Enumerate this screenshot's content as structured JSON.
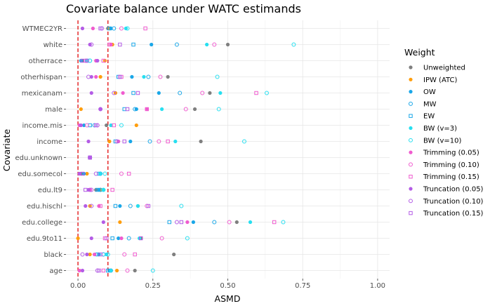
{
  "chart_data": {
    "type": "scatter",
    "title": "Covariate balance under WATC estimands",
    "xlabel": "ASMD",
    "ylabel": "Covariate",
    "xlim": [
      -0.04,
      1.04
    ],
    "xticks": [
      0.0,
      0.25,
      0.5,
      0.75,
      1.0
    ],
    "xtick_labels": [
      "0.00",
      "0.25",
      "0.50",
      "0.75",
      "1.00"
    ],
    "reference_lines": [
      0.0,
      0.1
    ],
    "reference_line_color": "#e41a1c",
    "grid": true,
    "legend_position": "right",
    "legend_title": "Weight",
    "categories": [
      "WTMEC2YR",
      "white",
      "otherrace",
      "otherhispan",
      "mexicanam",
      "male",
      "income.mis",
      "income",
      "edu.unknown",
      "edu.somecol",
      "edu.lt9",
      "edu.hischl",
      "edu.college",
      "edu.9to11",
      "black",
      "age"
    ],
    "series": [
      {
        "name": "Unweighted",
        "color": "#7f7f7f",
        "shape": "circle-filled",
        "values": [
          0.1,
          0.5,
          0.015,
          0.3,
          0.44,
          0.39,
          0.095,
          0.41,
          0.04,
          0.01,
          0.06,
          0.2,
          0.53,
          0.21,
          0.32,
          0.19
        ]
      },
      {
        "name": "IPW (ATC)",
        "color": "#ff9e0d",
        "shape": "circle-filled",
        "values": [
          0.105,
          0.115,
          0.09,
          0.075,
          0.125,
          0.01,
          0.195,
          0.105,
          0.04,
          0.03,
          0.075,
          0.04,
          0.14,
          0.0,
          0.04,
          0.13
        ]
      },
      {
        "name": "OW",
        "color": "#1aa7e8",
        "shape": "circle-filled",
        "values": [
          0.11,
          0.245,
          0.01,
          0.18,
          0.27,
          0.195,
          0.02,
          0.175,
          0.04,
          0.02,
          0.07,
          0.14,
          0.385,
          0.135,
          0.07,
          0.105
        ]
      },
      {
        "name": "MW",
        "color": "#1aa7e8",
        "shape": "circle-open",
        "values": [
          0.12,
          0.33,
          0.04,
          0.235,
          0.34,
          0.19,
          0.055,
          0.24,
          0.04,
          0.075,
          0.075,
          0.175,
          0.455,
          0.17,
          0.085,
          0.11
        ]
      },
      {
        "name": "EW",
        "color": "#1aa7e8",
        "shape": "square-open",
        "values": [
          0.105,
          0.185,
          0.03,
          0.135,
          0.185,
          0.155,
          0.04,
          0.125,
          0.04,
          0.07,
          0.065,
          0.125,
          0.305,
          0.115,
          0.065,
          0.1
        ]
      },
      {
        "name": "BW (v=3)",
        "color": "#27dff0",
        "shape": "circle-filled",
        "values": [
          0.16,
          0.43,
          0.03,
          0.22,
          0.475,
          0.28,
          0.11,
          0.325,
          0.04,
          0.075,
          0.085,
          0.2,
          0.575,
          0.205,
          0.095,
          0.11
        ]
      },
      {
        "name": "BW (v=10)",
        "color": "#27dff0",
        "shape": "circle-open",
        "values": [
          0.165,
          0.72,
          0.04,
          0.465,
          0.63,
          0.47,
          0.145,
          0.555,
          0.04,
          0.09,
          0.085,
          0.345,
          0.685,
          0.365,
          0.1,
          0.25
        ]
      },
      {
        "name": "Trimming (0.05)",
        "color": "#f05ccf",
        "shape": "circle-filled",
        "values": [
          0.05,
          0.11,
          0.06,
          0.06,
          0.15,
          0.23,
          0.005,
          0.135,
          0.04,
          0.005,
          0.04,
          0.07,
          0.365,
          0.145,
          0.055,
          0.005
        ]
      },
      {
        "name": "Trimming (0.10)",
        "color": "#f05ccf",
        "shape": "circle-open",
        "values": [
          0.145,
          0.455,
          0.025,
          0.275,
          0.415,
          0.36,
          0.03,
          0.27,
          0.04,
          0.145,
          0.04,
          0.23,
          0.505,
          0.28,
          0.155,
          0.165
        ]
      },
      {
        "name": "Trimming (0.15)",
        "color": "#f05ccf",
        "shape": "square-open",
        "values": [
          0.225,
          0.105,
          0.085,
          0.145,
          0.595,
          0.23,
          0.12,
          0.3,
          0.04,
          0.17,
          0.115,
          0.075,
          0.655,
          0.09,
          0.19,
          0.085
        ]
      },
      {
        "name": "Truncation (0.05)",
        "color": "#b45ce6",
        "shape": "circle-filled",
        "values": [
          0.015,
          0.04,
          0.065,
          0.045,
          0.045,
          0.075,
          0.01,
          0.035,
          0.04,
          0.005,
          0.035,
          0.025,
          0.085,
          0.045,
          0.03,
          0.015
        ]
      },
      {
        "name": "Truncation (0.10)",
        "color": "#b45ce6",
        "shape": "circle-open",
        "values": [
          0.08,
          0.045,
          0.03,
          0.035,
          0.12,
          0.075,
          0.065,
          0.13,
          0.04,
          0.06,
          0.045,
          0.045,
          0.33,
          0.095,
          0.015,
          0.065
        ]
      },
      {
        "name": "Truncation (0.15)",
        "color": "#b45ce6",
        "shape": "square-open",
        "values": [
          0.075,
          0.14,
          0.015,
          0.14,
          0.2,
          0.165,
          0.06,
          0.155,
          0.04,
          0.015,
          0.025,
          0.235,
          0.345,
          0.21,
          0.075,
          0.07
        ]
      }
    ]
  }
}
